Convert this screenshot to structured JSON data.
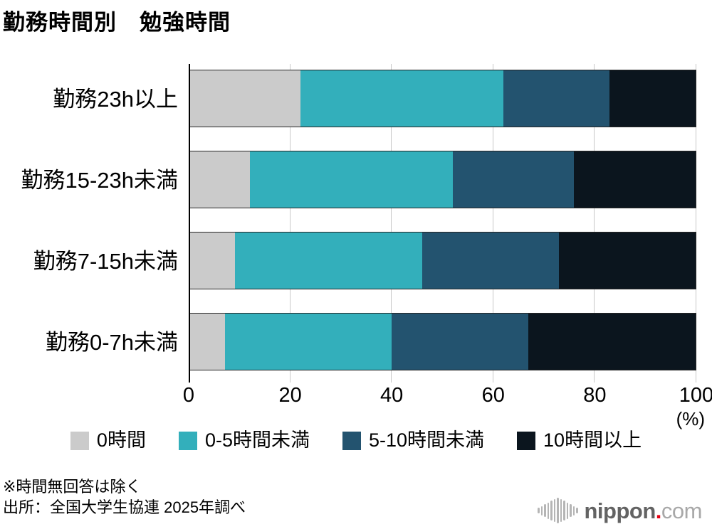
{
  "title": "勤務時間別　勉強時間",
  "chart_data": {
    "type": "bar",
    "orientation": "horizontal",
    "stacked": true,
    "title": "勤務時間別　勉強時間",
    "categories": [
      "勤務23h以上",
      "勤務15-23h未満",
      "勤務7-15h未満",
      "勤務0-7h未満"
    ],
    "series": [
      {
        "name": "0時間",
        "color": "#cbcbcb",
        "values": [
          22,
          12,
          9,
          7
        ]
      },
      {
        "name": "0-5時間未満",
        "color": "#33afbb",
        "values": [
          40,
          40,
          37,
          33
        ]
      },
      {
        "name": "5-10時間未満",
        "color": "#23536f",
        "values": [
          21,
          24,
          27,
          27
        ]
      },
      {
        "name": "10時間以上",
        "color": "#0b151e",
        "values": [
          17,
          24,
          27,
          33
        ]
      }
    ],
    "x_ticks": [
      0,
      20,
      40,
      60,
      80,
      100
    ],
    "xlim": [
      0,
      100
    ],
    "x_unit": "(%)",
    "grid": true,
    "legend_position": "bottom"
  },
  "footnotes": {
    "note": "※時間無回答は除く",
    "source": "出所：全国大学生協連 2025年調べ"
  },
  "logo": {
    "brand": "nippon",
    "dot": ".",
    "tld": "com"
  }
}
